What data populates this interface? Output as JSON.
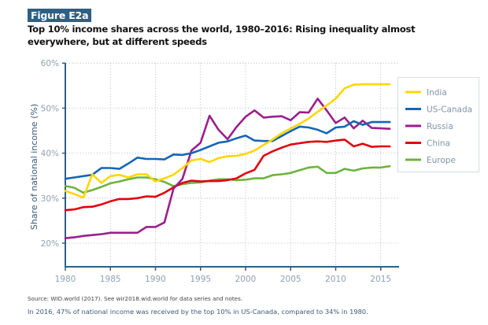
{
  "figure": {
    "badge": "Figure E2a",
    "title": "Top 10% income shares across the world, 1980–2016: Rising inequality almost everywhere, but at different speeds",
    "source": "Source: WID.world (2017). See wir2018.wid.world for data series and notes.",
    "note": "In 2016, 47% of national income was received by the top 10% in US-Canada, compared to 34% in 1980.",
    "colors": {
      "badge_bg": "#2e5f85",
      "axis": "#2e5f85",
      "grid": "#b8c4cf"
    }
  },
  "chart_data": {
    "type": "line",
    "title": "Top 10% income shares across the world, 1980–2016",
    "xlabel": "",
    "ylabel": "Share of national income (%)",
    "xlim": [
      1980,
      2017
    ],
    "ylim": [
      15,
      60
    ],
    "x_ticks": [
      1980,
      1985,
      1990,
      1995,
      2000,
      2005,
      2010,
      2015
    ],
    "x_tick_labels": [
      "1980",
      "1985",
      "1990",
      "1995",
      "2000",
      "2005",
      "2010",
      "2015"
    ],
    "y_ticks": [
      20,
      30,
      40,
      50,
      60
    ],
    "y_tick_labels": [
      "20%",
      "30%",
      "40%",
      "50%",
      "60%"
    ],
    "grid": true,
    "legend_position": "right",
    "x": [
      1980,
      1981,
      1982,
      1983,
      1984,
      1985,
      1986,
      1987,
      1988,
      1989,
      1990,
      1991,
      1992,
      1993,
      1994,
      1995,
      1996,
      1997,
      1998,
      1999,
      2000,
      2001,
      2002,
      2003,
      2004,
      2005,
      2006,
      2007,
      2008,
      2009,
      2010,
      2011,
      2012,
      2013,
      2014,
      2015,
      2016
    ],
    "series": [
      {
        "name": "India",
        "color": "#ffd600",
        "values": [
          31.6,
          30.9,
          30.1,
          35.3,
          33.4,
          34.9,
          35.2,
          34.6,
          35.3,
          35.3,
          33.7,
          34.4,
          35.2,
          36.7,
          38.4,
          38.7,
          38.0,
          38.9,
          39.3,
          39.4,
          39.8,
          40.6,
          41.8,
          43.0,
          44.4,
          45.5,
          46.5,
          47.7,
          49.2,
          50.6,
          52.1,
          54.4,
          55.2,
          55.3,
          55.3,
          55.3,
          55.3
        ]
      },
      {
        "name": "US-Canada",
        "color": "#1565b5",
        "values": [
          34.3,
          34.6,
          34.9,
          35.2,
          36.7,
          36.7,
          36.5,
          37.7,
          39.0,
          38.7,
          38.7,
          38.6,
          39.7,
          39.6,
          40.0,
          40.7,
          41.5,
          42.3,
          42.6,
          43.3,
          43.9,
          42.8,
          42.7,
          42.7,
          43.8,
          44.9,
          45.9,
          45.7,
          45.2,
          44.4,
          45.7,
          45.9,
          47.1,
          46.3,
          46.9,
          46.9,
          46.9
        ]
      },
      {
        "name": "Russia",
        "color": "#9c1e8c",
        "values": [
          21.1,
          21.3,
          21.6,
          21.8,
          22.0,
          22.3,
          22.3,
          22.3,
          22.3,
          23.6,
          23.6,
          24.6,
          32.1,
          34.3,
          40.6,
          42.3,
          48.3,
          45.2,
          43.1,
          45.8,
          48.1,
          49.5,
          47.9,
          48.1,
          48.2,
          47.3,
          49.1,
          49.0,
          52.1,
          49.5,
          46.7,
          47.9,
          45.5,
          47.2,
          45.6,
          45.5,
          45.4
        ]
      },
      {
        "name": "China",
        "color": "#e3000f",
        "values": [
          27.3,
          27.5,
          28.0,
          28.1,
          28.6,
          29.3,
          29.8,
          29.8,
          30.0,
          30.4,
          30.3,
          31.2,
          32.4,
          33.4,
          33.9,
          33.7,
          33.8,
          33.8,
          34.0,
          34.4,
          35.5,
          36.3,
          39.4,
          40.4,
          41.2,
          41.9,
          42.2,
          42.5,
          42.6,
          42.5,
          42.8,
          43.0,
          41.5,
          42.1,
          41.4,
          41.5,
          41.5
        ]
      },
      {
        "name": "Europe",
        "color": "#6db33f",
        "values": [
          32.7,
          32.3,
          31.2,
          31.8,
          32.5,
          33.3,
          33.7,
          34.2,
          34.6,
          34.6,
          34.2,
          33.6,
          32.7,
          33.1,
          33.4,
          33.5,
          33.9,
          34.2,
          34.2,
          34.0,
          34.1,
          34.4,
          34.4,
          35.1,
          35.3,
          35.6,
          36.2,
          36.8,
          37.0,
          35.6,
          35.6,
          36.5,
          36.1,
          36.6,
          36.8,
          36.8,
          37.1
        ]
      }
    ]
  }
}
